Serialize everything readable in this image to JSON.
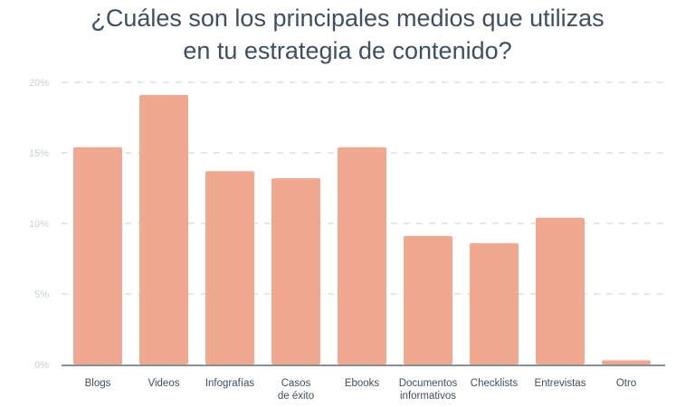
{
  "chart_data": {
    "type": "bar",
    "title": [
      "¿Cuáles son los principales medios que utilizas",
      "en tu estrategia de contenido?"
    ],
    "categories": [
      [
        "Blogs"
      ],
      [
        "Videos"
      ],
      [
        "Infografías"
      ],
      [
        "Casos",
        "de éxito"
      ],
      [
        "Ebooks"
      ],
      [
        "Documentos",
        "informativos"
      ],
      [
        "Checklists"
      ],
      [
        "Entrevistas"
      ],
      [
        "Otro"
      ]
    ],
    "values": [
      15.4,
      19.1,
      13.7,
      13.2,
      15.4,
      9.1,
      8.6,
      10.4,
      0.3
    ],
    "ylim": [
      0,
      20
    ],
    "yticks": [
      "0%",
      "5%",
      "10%",
      "15%",
      "20%"
    ],
    "grid": true,
    "colors": {
      "bar": "#f0a891",
      "grid": "#d4dbe3",
      "tick": "#c5cfda",
      "axis": "#3f4f62",
      "label": "#3f4f62"
    }
  }
}
